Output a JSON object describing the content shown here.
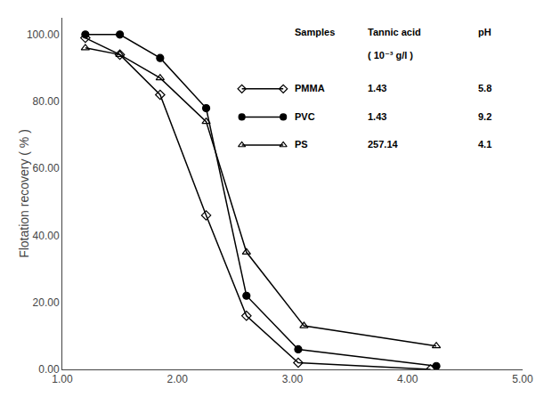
{
  "chart_data": {
    "type": "line",
    "ylabel": "Flotation recovery ( % )",
    "xlim": [
      1.0,
      5.0
    ],
    "ylim": [
      0.0,
      105.0
    ],
    "xticks": [
      {
        "value": 1.0,
        "label": "1.00"
      },
      {
        "value": 2.0,
        "label": "2.00"
      },
      {
        "value": 3.0,
        "label": "3.00"
      },
      {
        "value": 4.0,
        "label": "4.00"
      },
      {
        "value": 5.0,
        "label": "5.00"
      }
    ],
    "yticks": [
      {
        "value": 0.0,
        "label": "0.00"
      },
      {
        "value": 20.0,
        "label": "20.00"
      },
      {
        "value": 40.0,
        "label": "40.00"
      },
      {
        "value": 60.0,
        "label": "60.00"
      },
      {
        "value": 80.0,
        "label": "80.00"
      },
      {
        "value": 100.0,
        "label": "100.00"
      }
    ],
    "grid": false,
    "color": "#000000",
    "legend_columns": [
      "Samples",
      "Tannic acid",
      "pH"
    ],
    "legend_units": "( 10⁻³ g/l )",
    "series": [
      {
        "name": "PMMA",
        "marker": "diamond-open",
        "tannic": "1.43",
        "pH": "5.8",
        "x": [
          1.2,
          1.5,
          1.85,
          2.25,
          2.6,
          3.05,
          4.2
        ],
        "values": [
          99.0,
          94.0,
          82.0,
          46.0,
          16.0,
          2.0,
          0.0
        ]
      },
      {
        "name": "PVC",
        "marker": "circle",
        "tannic": "1.43",
        "pH": "9.2",
        "x": [
          1.2,
          1.5,
          1.85,
          2.25,
          2.6,
          3.05,
          4.25
        ],
        "values": [
          100.0,
          100.0,
          93.0,
          78.0,
          22.0,
          6.0,
          1.0
        ]
      },
      {
        "name": "PS",
        "marker": "triangle-up-open",
        "tannic": "257.14",
        "pH": "4.1",
        "x": [
          1.2,
          1.5,
          1.85,
          2.25,
          2.6,
          3.1,
          4.25
        ],
        "values": [
          96.0,
          94.0,
          87.0,
          74.0,
          35.0,
          13.0,
          7.0
        ]
      }
    ]
  }
}
